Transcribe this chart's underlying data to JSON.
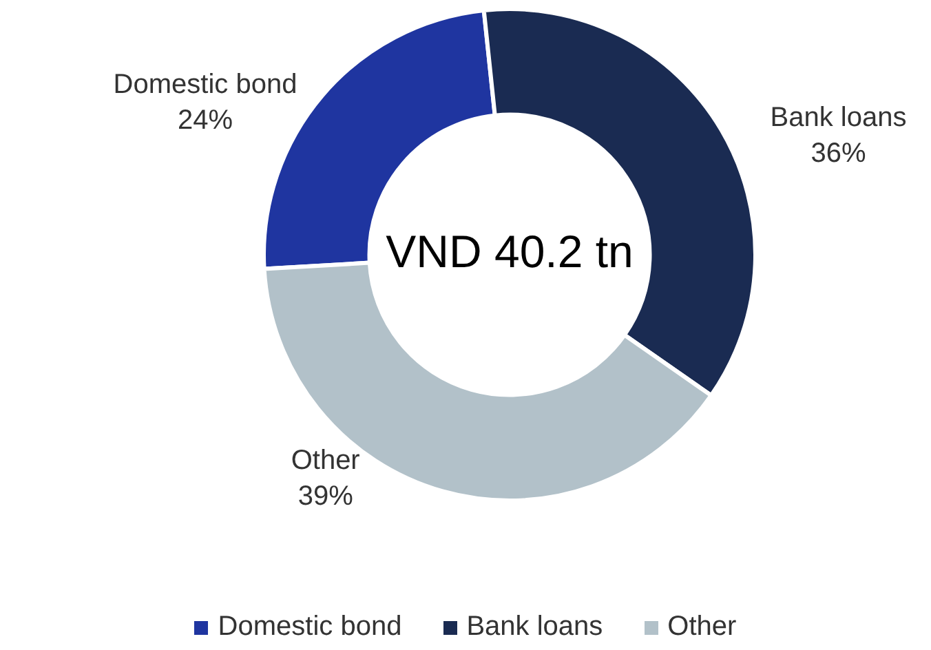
{
  "chart_data": {
    "type": "donut",
    "categories": [
      "Domestic bond",
      "Bank loans",
      "Other"
    ],
    "values": [
      24,
      36,
      39
    ],
    "colors": [
      "#1f35a0",
      "#1a2b52",
      "#b2c1c9"
    ],
    "value_labels": [
      "24%",
      "36%",
      "39%"
    ],
    "legend": "bottom",
    "annotations": [
      "VND 40.2 tn"
    ]
  }
}
